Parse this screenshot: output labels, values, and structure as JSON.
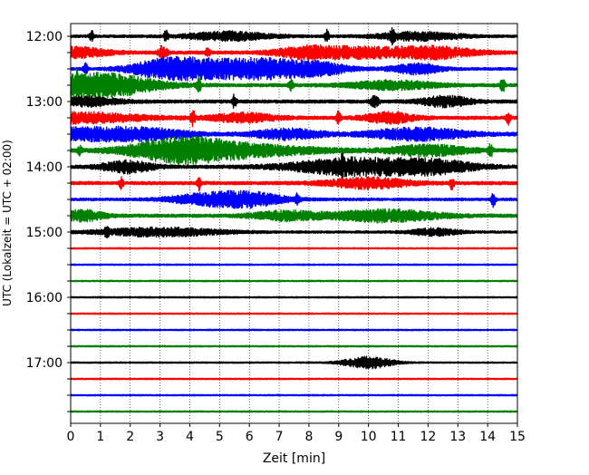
{
  "chart_data": {
    "type": "line",
    "title": "",
    "xlabel": "Zeit  [min]",
    "ylabel": "UTC (Lokalzeit = UTC + 02:00)",
    "xlim": [
      0,
      15
    ],
    "x_ticks": [
      "0",
      "1",
      "2",
      "3",
      "4",
      "5",
      "6",
      "7",
      "8",
      "9",
      "10",
      "11",
      "12",
      "13",
      "14",
      "15"
    ],
    "x_grid": true,
    "y_ticks": [
      "12:00",
      "13:00",
      "14:00",
      "15:00",
      "16:00",
      "17:00"
    ],
    "trace_interval_minutes": 15,
    "trace_colors": [
      "#000000",
      "#ff0000",
      "#0000ff",
      "#008000"
    ],
    "series": [
      {
        "start": "12:00",
        "color": "#000000",
        "base_amplitude": 0.08,
        "events": [
          {
            "t": 0.7,
            "dur": 0.05,
            "amp": 0.35
          },
          {
            "t": 3.2,
            "dur": 0.05,
            "amp": 0.3
          },
          {
            "t": 5.3,
            "dur": 1.0,
            "amp": 0.25
          },
          {
            "t": 8.6,
            "dur": 0.05,
            "amp": 0.35
          },
          {
            "t": 10.8,
            "dur": 0.05,
            "amp": 0.3
          },
          {
            "t": 11.7,
            "dur": 1.0,
            "amp": 0.25
          }
        ]
      },
      {
        "start": "12:15",
        "color": "#ff0000",
        "base_amplitude": 0.1,
        "events": [
          {
            "t": 0.1,
            "dur": 0.8,
            "amp": 0.3
          },
          {
            "t": 3.1,
            "dur": 0.1,
            "amp": 0.4
          },
          {
            "t": 4.6,
            "dur": 0.05,
            "amp": 0.3
          },
          {
            "t": 7.8,
            "dur": 0.7,
            "amp": 0.3
          },
          {
            "t": 9.5,
            "dur": 1.0,
            "amp": 0.3
          },
          {
            "t": 12.1,
            "dur": 1.0,
            "amp": 0.35
          }
        ]
      },
      {
        "start": "12:30",
        "color": "#0000ff",
        "base_amplitude": 0.08,
        "events": [
          {
            "t": 0.5,
            "dur": 0.05,
            "amp": 0.3
          },
          {
            "t": 3.1,
            "dur": 0.8,
            "amp": 0.4
          },
          {
            "t": 4.9,
            "dur": 1.4,
            "amp": 0.55
          },
          {
            "t": 6.6,
            "dur": 0.7,
            "amp": 0.3
          },
          {
            "t": 8.2,
            "dur": 0.8,
            "amp": 0.4
          },
          {
            "t": 11.6,
            "dur": 0.6,
            "amp": 0.3
          }
        ]
      },
      {
        "start": "12:45",
        "color": "#008000",
        "base_amplitude": 0.1,
        "events": [
          {
            "t": 0.2,
            "dur": 0.1,
            "amp": 0.3
          },
          {
            "t": 1.0,
            "dur": 1.3,
            "amp": 0.7
          },
          {
            "t": 4.3,
            "dur": 0.05,
            "amp": 0.4
          },
          {
            "t": 7.4,
            "dur": 0.05,
            "amp": 0.3
          },
          {
            "t": 10.8,
            "dur": 1.0,
            "amp": 0.25
          },
          {
            "t": 14.5,
            "dur": 0.05,
            "amp": 0.45
          }
        ]
      },
      {
        "start": "13:00",
        "color": "#000000",
        "base_amplitude": 0.1,
        "events": [
          {
            "t": 0.5,
            "dur": 0.8,
            "amp": 0.25
          },
          {
            "t": 5.5,
            "dur": 0.05,
            "amp": 0.4
          },
          {
            "t": 10.2,
            "dur": 0.1,
            "amp": 0.35
          },
          {
            "t": 12.6,
            "dur": 0.6,
            "amp": 0.3
          }
        ]
      },
      {
        "start": "13:15",
        "color": "#ff0000",
        "base_amplitude": 0.1,
        "events": [
          {
            "t": 0.3,
            "dur": 1.5,
            "amp": 0.3
          },
          {
            "t": 4.1,
            "dur": 0.05,
            "amp": 0.45
          },
          {
            "t": 5.8,
            "dur": 0.8,
            "amp": 0.25
          },
          {
            "t": 9.0,
            "dur": 0.05,
            "amp": 0.4
          },
          {
            "t": 10.7,
            "dur": 0.6,
            "amp": 0.3
          },
          {
            "t": 14.7,
            "dur": 0.05,
            "amp": 0.35
          }
        ]
      },
      {
        "start": "13:30",
        "color": "#0000ff",
        "base_amplitude": 0.1,
        "events": [
          {
            "t": 0.3,
            "dur": 1.2,
            "amp": 0.35
          },
          {
            "t": 2.6,
            "dur": 1.0,
            "amp": 0.3
          },
          {
            "t": 7.3,
            "dur": 0.8,
            "amp": 0.3
          },
          {
            "t": 11.7,
            "dur": 1.2,
            "amp": 0.35
          }
        ]
      },
      {
        "start": "13:45",
        "color": "#008000",
        "base_amplitude": 0.1,
        "events": [
          {
            "t": 0.3,
            "dur": 0.05,
            "amp": 0.3
          },
          {
            "t": 3.6,
            "dur": 1.1,
            "amp": 0.5
          },
          {
            "t": 5.3,
            "dur": 2.0,
            "amp": 0.4
          },
          {
            "t": 12.0,
            "dur": 1.0,
            "amp": 0.3
          },
          {
            "t": 14.1,
            "dur": 0.05,
            "amp": 0.35
          }
        ]
      },
      {
        "start": "14:00",
        "color": "#000000",
        "base_amplitude": 0.1,
        "events": [
          {
            "t": 1.9,
            "dur": 0.6,
            "amp": 0.35
          },
          {
            "t": 9.1,
            "dur": 0.05,
            "amp": 0.35
          },
          {
            "t": 9.5,
            "dur": 1.5,
            "amp": 0.5
          },
          {
            "t": 12.2,
            "dur": 1.0,
            "amp": 0.35
          }
        ]
      },
      {
        "start": "14:15",
        "color": "#ff0000",
        "base_amplitude": 0.1,
        "events": [
          {
            "t": 1.7,
            "dur": 0.05,
            "amp": 0.3
          },
          {
            "t": 4.3,
            "dur": 0.05,
            "amp": 0.4
          },
          {
            "t": 10.0,
            "dur": 1.0,
            "amp": 0.3
          },
          {
            "t": 12.8,
            "dur": 0.05,
            "amp": 0.35
          }
        ]
      },
      {
        "start": "14:30",
        "color": "#0000ff",
        "base_amplitude": 0.08,
        "events": [
          {
            "t": 4.3,
            "dur": 0.8,
            "amp": 0.25
          },
          {
            "t": 5.9,
            "dur": 0.9,
            "amp": 0.45
          },
          {
            "t": 7.6,
            "dur": 0.05,
            "amp": 0.3
          },
          {
            "t": 14.2,
            "dur": 0.05,
            "amp": 0.45
          }
        ]
      },
      {
        "start": "14:45",
        "color": "#008000",
        "base_amplitude": 0.1,
        "events": [
          {
            "t": 0.4,
            "dur": 0.5,
            "amp": 0.3
          },
          {
            "t": 7.2,
            "dur": 0.8,
            "amp": 0.25
          },
          {
            "t": 10.5,
            "dur": 1.3,
            "amp": 0.35
          }
        ]
      },
      {
        "start": "15:00",
        "color": "#000000",
        "base_amplitude": 0.07,
        "events": [
          {
            "t": 1.2,
            "dur": 0.05,
            "amp": 0.25
          },
          {
            "t": 3.0,
            "dur": 1.5,
            "amp": 0.25
          },
          {
            "t": 12.2,
            "dur": 0.6,
            "amp": 0.2
          }
        ]
      },
      {
        "start": "15:15",
        "color": "#ff0000",
        "base_amplitude": 0.04,
        "events": []
      },
      {
        "start": "15:30",
        "color": "#0000ff",
        "base_amplitude": 0.04,
        "events": []
      },
      {
        "start": "15:45",
        "color": "#008000",
        "base_amplitude": 0.04,
        "events": []
      },
      {
        "start": "16:00",
        "color": "#000000",
        "base_amplitude": 0.04,
        "events": []
      },
      {
        "start": "16:15",
        "color": "#ff0000",
        "base_amplitude": 0.04,
        "events": []
      },
      {
        "start": "16:30",
        "color": "#0000ff",
        "base_amplitude": 0.04,
        "events": []
      },
      {
        "start": "16:45",
        "color": "#008000",
        "base_amplitude": 0.04,
        "events": []
      },
      {
        "start": "17:00",
        "color": "#000000",
        "base_amplitude": 0.04,
        "events": [
          {
            "t": 10.0,
            "dur": 0.6,
            "amp": 0.35
          }
        ]
      },
      {
        "start": "17:15",
        "color": "#ff0000",
        "base_amplitude": 0.04,
        "events": []
      },
      {
        "start": "17:30",
        "color": "#0000ff",
        "base_amplitude": 0.04,
        "events": []
      },
      {
        "start": "17:45",
        "color": "#008000",
        "base_amplitude": 0.04,
        "events": []
      }
    ]
  }
}
